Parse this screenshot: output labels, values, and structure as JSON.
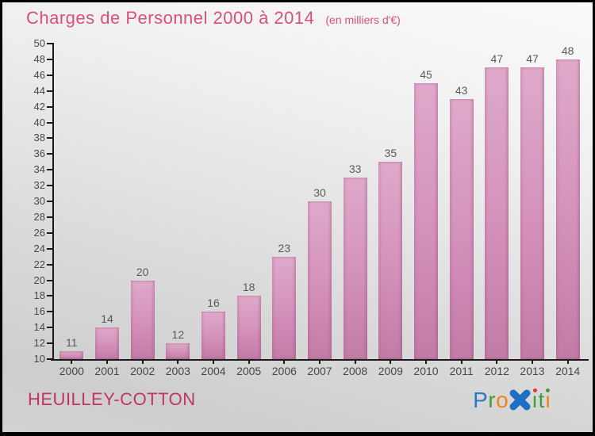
{
  "title": "Charges de Personnel 2000 à 2014",
  "subtitle": "(en milliers d'€)",
  "commune": "HEUILLEY-COTTON",
  "logo": {
    "brand": "Proxiti",
    "letters": [
      {
        "ch": "P",
        "color": "#2b7ac2"
      },
      {
        "ch": "r",
        "color": "#3da03c"
      },
      {
        "ch": "o",
        "color": "#f0821e"
      },
      {
        "ch": "x",
        "color": "#1f6fc4",
        "big": true
      },
      {
        "ch": "i",
        "color": "#3da03c",
        "dot": "#e6362a"
      },
      {
        "ch": "t",
        "color": "#3da03c"
      },
      {
        "ch": "i",
        "color": "#f0821e",
        "dot": "#3da03c"
      }
    ]
  },
  "colors": {
    "title": "#d9517b",
    "commune": "#c13468",
    "bar_top": "#dfa9ca",
    "bar_mid": "#d593bc",
    "bar_bottom": "#c17ca6",
    "axis": "#1a1a1a",
    "tick_label": "#474747",
    "value_label": "#5a5a5a"
  },
  "chart_data": {
    "type": "bar",
    "title": "Charges de Personnel 2000 à 2014",
    "unit_note": "(en milliers d'€)",
    "categories": [
      "2000",
      "2001",
      "2002",
      "2003",
      "2004",
      "2005",
      "2006",
      "2007",
      "2008",
      "2009",
      "2010",
      "2011",
      "2012",
      "2013",
      "2014"
    ],
    "values": [
      11,
      14,
      20,
      12,
      16,
      18,
      23,
      30,
      33,
      35,
      45,
      43,
      47,
      47,
      48
    ],
    "xlabel": "",
    "ylabel": "",
    "ylim": [
      10,
      50
    ],
    "ytick_step": 2,
    "grid": false,
    "legend": false
  }
}
